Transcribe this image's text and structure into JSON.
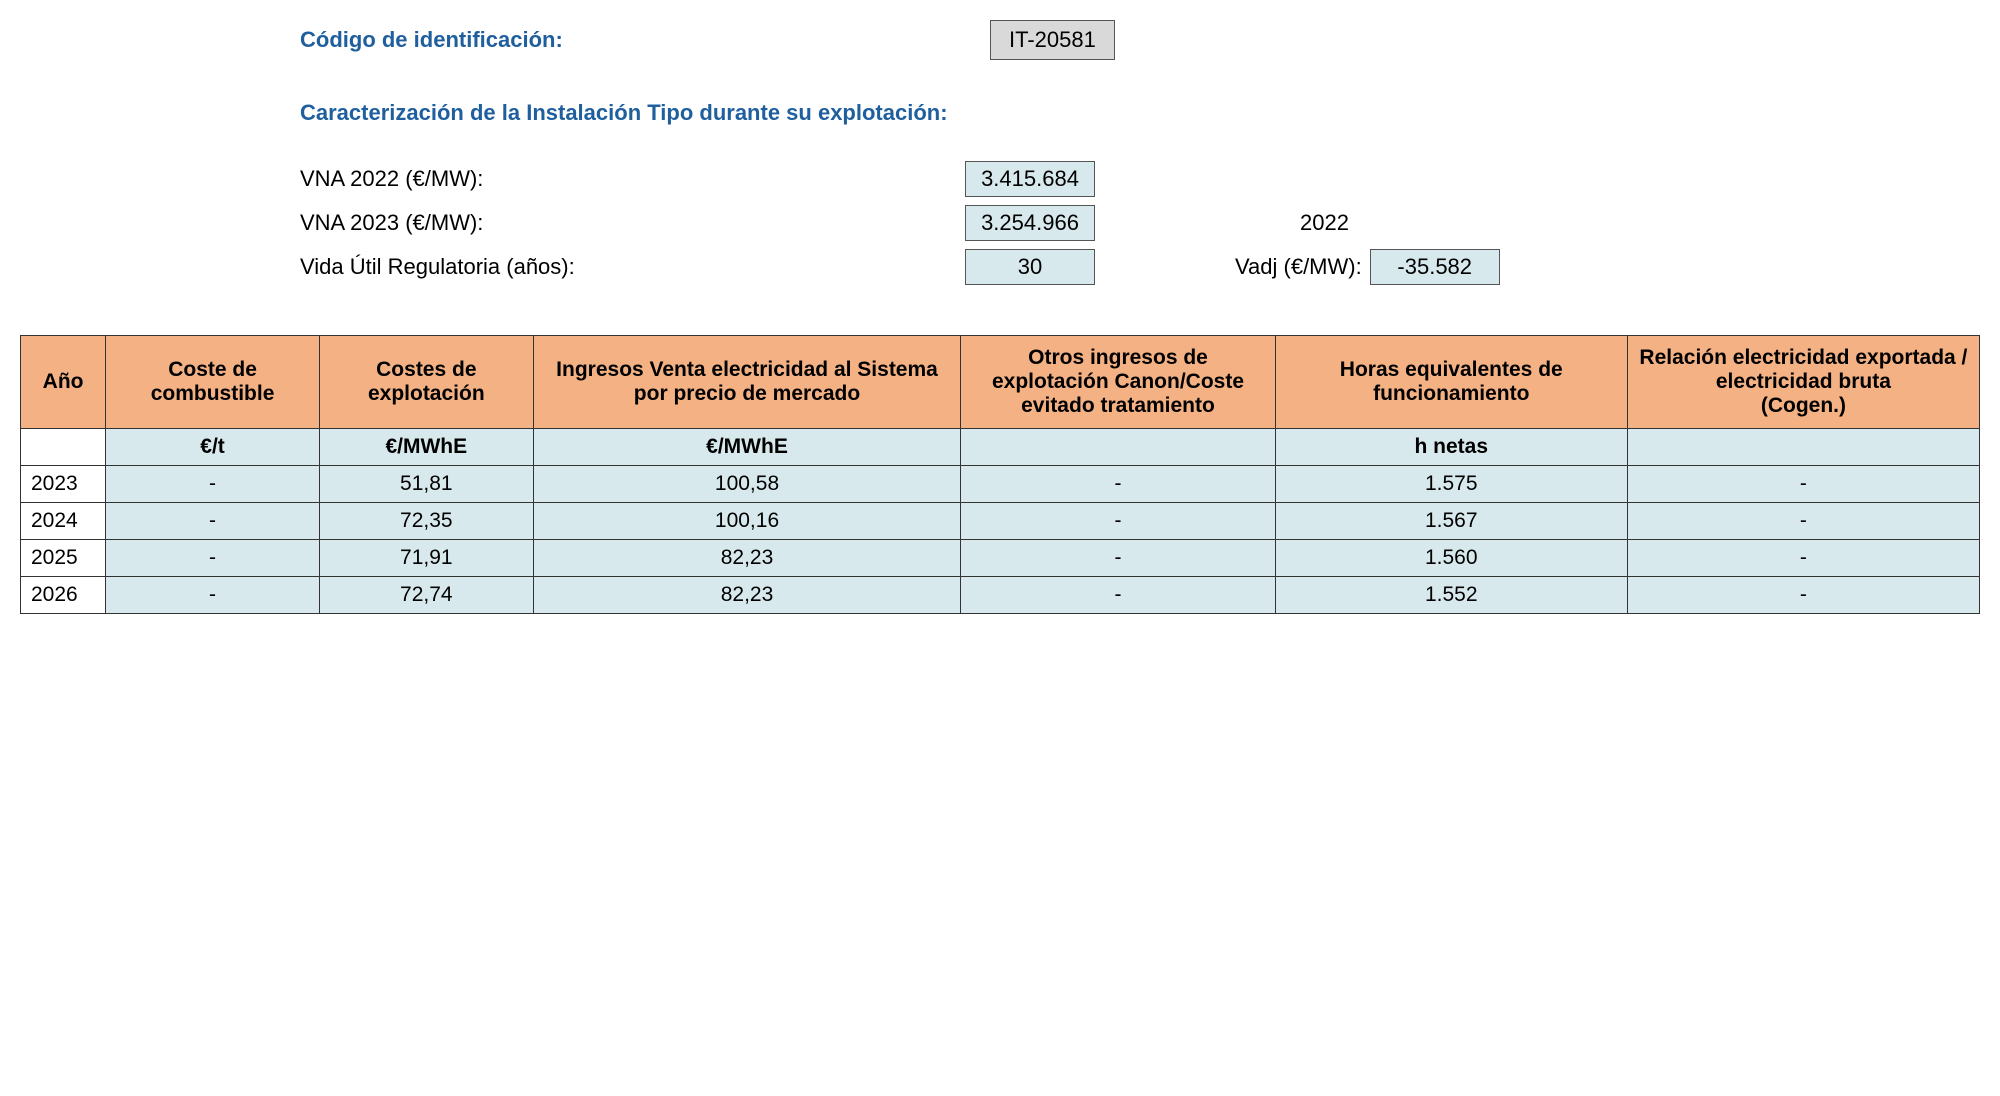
{
  "header": {
    "code_label": "Código de identificación:",
    "code_value": "IT-20581",
    "section_title": "Caracterización de la Instalación Tipo durante su explotación:"
  },
  "params": {
    "vna2022_label": "VNA 2022 (€/MW):",
    "vna2022_value": "3.415.684",
    "vna2023_label": "VNA 2023 (€/MW):",
    "vna2023_value": "3.254.966",
    "year_ref": "2022",
    "vida_label": "Vida Útil Regulatoria (años):",
    "vida_value": "30",
    "vadj_label": "Vadj (€/MW):",
    "vadj_value": "-35.582"
  },
  "table": {
    "columns": [
      "Año",
      "Coste de combustible",
      "Costes de explotación",
      "Ingresos Venta electricidad al Sistema por precio de mercado",
      "Otros ingresos de explotación Canon/Coste evitado tratamiento",
      "Horas equivalentes de funcionamiento",
      "Relación electricidad exportada / electricidad bruta\n(Cogen.)"
    ],
    "col_widths": [
      "60px",
      "170px",
      "170px",
      "340px",
      "250px",
      "280px",
      "280px"
    ],
    "units": [
      "",
      "€/t",
      "€/MWhE",
      "€/MWhE",
      "",
      "h netas",
      ""
    ],
    "rows": [
      [
        "2023",
        "-",
        "51,81",
        "100,58",
        "-",
        "1.575",
        "-"
      ],
      [
        "2024",
        "-",
        "72,35",
        "100,16",
        "-",
        "1.567",
        "-"
      ],
      [
        "2025",
        "-",
        "71,91",
        "82,23",
        "-",
        "1.560",
        "-"
      ],
      [
        "2026",
        "-",
        "72,74",
        "82,23",
        "-",
        "1.552",
        "-"
      ]
    ]
  },
  "colors": {
    "header_bg": "#f4b183",
    "cell_bg": "#d8e9ed",
    "code_bg": "#d9d9d9",
    "blue_text": "#1f5f9e",
    "border": "#333333"
  }
}
